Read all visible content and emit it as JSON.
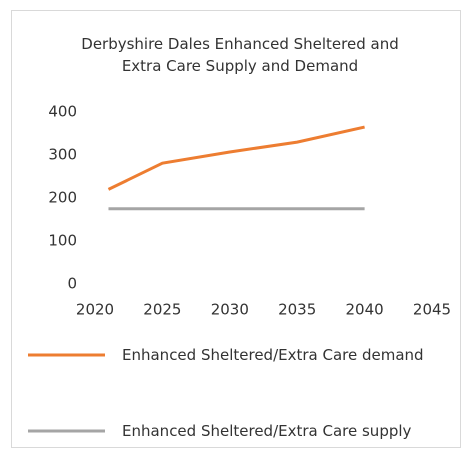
{
  "chart_data": {
    "type": "line",
    "title": "Derbyshire Dales Enhanced Sheltered and Extra Care Supply and Demand",
    "x": [
      2021,
      2025,
      2030,
      2035,
      2040
    ],
    "series": [
      {
        "name": "Enhanced Sheltered/Extra Care demand",
        "color": "#ed7d31",
        "values": [
          220,
          281,
          307,
          330,
          365
        ]
      },
      {
        "name": "Enhanced Sheltered/Extra Care supply",
        "color": "#a5a5a5",
        "values": [
          175,
          175,
          175,
          175,
          175
        ]
      }
    ],
    "xlim": [
      2020,
      2045
    ],
    "xticks": [
      2020,
      2025,
      2030,
      2035,
      2040,
      2045
    ],
    "ylim": [
      0,
      400
    ],
    "yticks": [
      0,
      100,
      200,
      300,
      400
    ],
    "grid": false,
    "legend": "bottom"
  }
}
